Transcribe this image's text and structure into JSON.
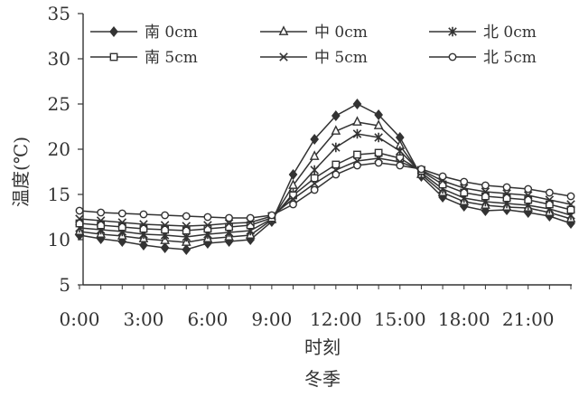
{
  "chart_data": {
    "type": "line",
    "title": "",
    "subtitle": "冬季",
    "xlabel": "时刻",
    "ylabel": "温度(℃)",
    "ylim": [
      5,
      35
    ],
    "yticks": [
      5,
      10,
      15,
      20,
      25,
      30,
      35
    ],
    "xlim": [
      0,
      23
    ],
    "x": [
      0,
      1,
      2,
      3,
      4,
      5,
      6,
      7,
      8,
      9,
      10,
      11,
      12,
      13,
      14,
      15,
      16,
      17,
      18,
      19,
      20,
      21,
      22,
      23
    ],
    "xticks": [
      {
        "x": 0,
        "label": "0:00"
      },
      {
        "x": 3,
        "label": "3:00"
      },
      {
        "x": 6,
        "label": "6:00"
      },
      {
        "x": 9,
        "label": "9:00"
      },
      {
        "x": 12,
        "label": "12:00"
      },
      {
        "x": 15,
        "label": "15:00"
      },
      {
        "x": 18,
        "label": "18:00"
      },
      {
        "x": 21,
        "label": "21:00"
      }
    ],
    "legend_position": "top",
    "grid": false,
    "line_color": "#333333",
    "series": [
      {
        "name": "南 0cm",
        "marker": "diamond",
        "values": [
          10.5,
          10.1,
          9.8,
          9.4,
          9.1,
          8.9,
          9.6,
          9.8,
          10.0,
          12.0,
          17.2,
          21.1,
          23.7,
          25.0,
          23.8,
          21.3,
          17.0,
          14.7,
          13.7,
          13.2,
          13.3,
          13.0,
          12.6,
          11.8
        ]
      },
      {
        "name": "中 0cm",
        "marker": "triangle",
        "values": [
          10.9,
          10.6,
          10.4,
          10.1,
          9.9,
          9.7,
          10.1,
          10.3,
          10.5,
          12.2,
          16.0,
          19.2,
          22.0,
          23.0,
          22.6,
          20.4,
          17.2,
          15.2,
          14.2,
          13.8,
          13.6,
          13.5,
          13.0,
          12.3
        ]
      },
      {
        "name": "北 0cm",
        "marker": "star",
        "values": [
          11.3,
          11.1,
          10.9,
          10.6,
          10.5,
          10.3,
          10.6,
          10.8,
          11.0,
          12.3,
          15.1,
          17.7,
          20.2,
          21.7,
          21.3,
          19.8,
          17.4,
          15.6,
          14.6,
          14.2,
          14.0,
          13.8,
          13.4,
          12.7
        ]
      },
      {
        "name": "南 5cm",
        "marker": "square",
        "values": [
          11.8,
          11.6,
          11.4,
          11.2,
          11.1,
          11.0,
          11.2,
          11.4,
          11.6,
          12.4,
          14.9,
          16.8,
          18.3,
          19.4,
          19.6,
          19.0,
          17.6,
          16.1,
          15.2,
          14.8,
          14.6,
          14.4,
          13.9,
          13.3
        ]
      },
      {
        "name": "中 5cm",
        "marker": "x",
        "values": [
          12.3,
          12.1,
          11.9,
          11.7,
          11.6,
          11.5,
          11.6,
          11.8,
          11.9,
          12.6,
          14.5,
          16.2,
          17.7,
          18.7,
          19.0,
          18.6,
          17.7,
          16.5,
          15.7,
          15.3,
          15.1,
          14.9,
          14.4,
          13.9
        ]
      },
      {
        "name": "北 5cm",
        "marker": "circle",
        "values": [
          13.2,
          13.0,
          12.9,
          12.8,
          12.7,
          12.6,
          12.5,
          12.4,
          12.4,
          12.7,
          13.9,
          15.5,
          17.2,
          18.2,
          18.5,
          18.2,
          17.8,
          17.0,
          16.4,
          16.0,
          15.8,
          15.6,
          15.2,
          14.8
        ]
      }
    ]
  }
}
